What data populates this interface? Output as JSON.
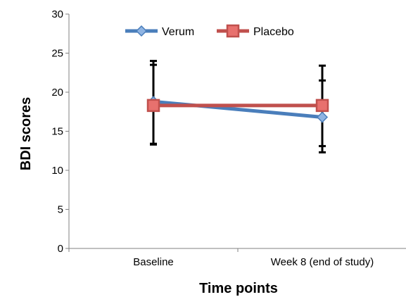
{
  "chart_data": {
    "type": "line",
    "title": "",
    "xlabel": "Time points",
    "ylabel": "BDI scores",
    "categories": [
      "Baseline",
      "Week 8 (end of study)"
    ],
    "ylim": [
      0,
      30
    ],
    "yticks": [
      "0",
      "5",
      "10",
      "15",
      "20",
      "25",
      "30"
    ],
    "grid": false,
    "legend_position": "top-center",
    "series": [
      {
        "name": "Verum",
        "values": [
          18.8,
          16.8
        ],
        "error_low": [
          13.3,
          12.3
        ],
        "error_high": [
          24.0,
          23.4
        ],
        "color": "#4a7ebb",
        "marker": "diamond"
      },
      {
        "name": "Placebo",
        "values": [
          18.3,
          18.3
        ],
        "error_low": [
          13.4,
          13.1
        ],
        "error_high": [
          23.5,
          21.5
        ],
        "color": "#c0504d",
        "marker": "square"
      }
    ]
  }
}
